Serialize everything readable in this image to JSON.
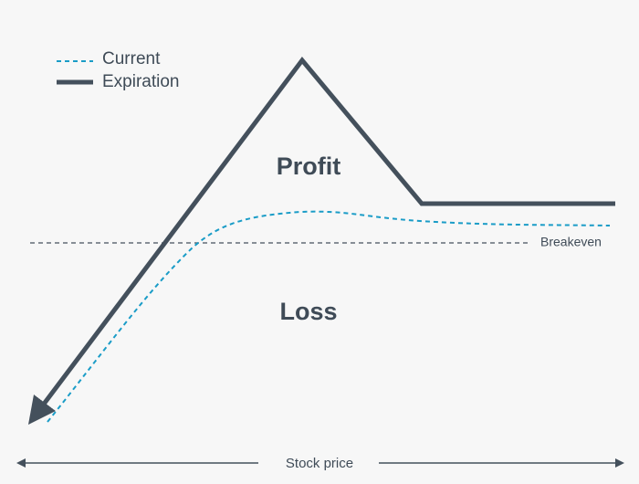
{
  "legend": {
    "current": "Current",
    "expiration": "Expiration"
  },
  "regions": {
    "profit": "Profit",
    "loss": "Loss"
  },
  "breakeven": "Breakeven",
  "x_axis": "Stock price"
}
